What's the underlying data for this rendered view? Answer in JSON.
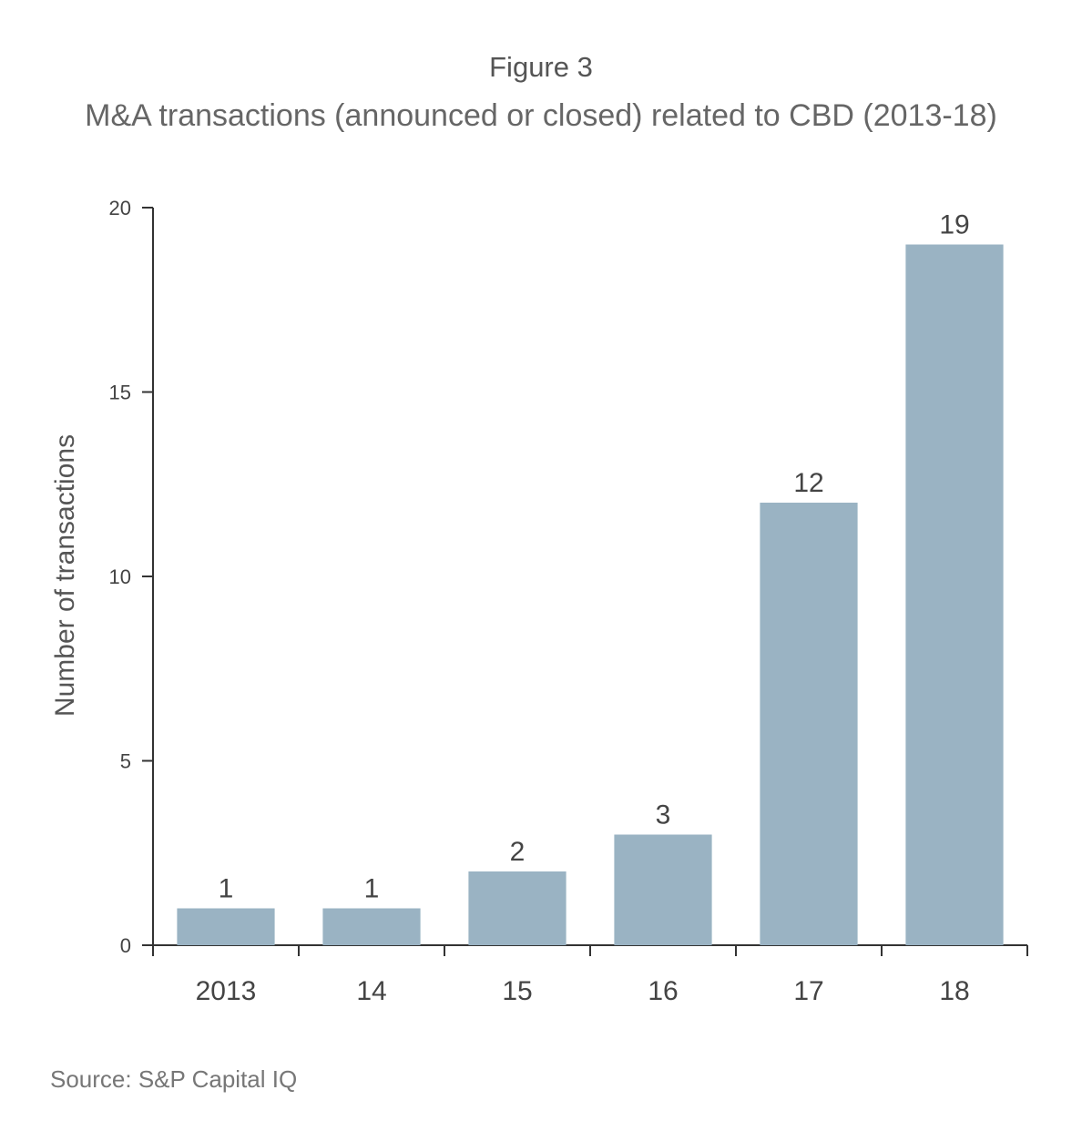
{
  "figure": {
    "label": "Figure 3",
    "title": "M&A transactions (announced or closed) related to CBD (2013-18)",
    "source": "Source: S&P Capital IQ"
  },
  "chart_data": {
    "type": "bar",
    "categories": [
      "2013",
      "14",
      "15",
      "16",
      "17",
      "18"
    ],
    "values": [
      1,
      1,
      2,
      3,
      12,
      19
    ],
    "data_labels": [
      "1",
      "1",
      "2",
      "3",
      "12",
      "19"
    ],
    "xlabel": "",
    "ylabel": "Number of transactions",
    "ylim": [
      0,
      20
    ],
    "yticks": [
      0,
      5,
      10,
      15,
      20
    ],
    "grid": false,
    "legend": "none",
    "bar_color": "#9ab3c3",
    "axis_color": "#333333"
  }
}
